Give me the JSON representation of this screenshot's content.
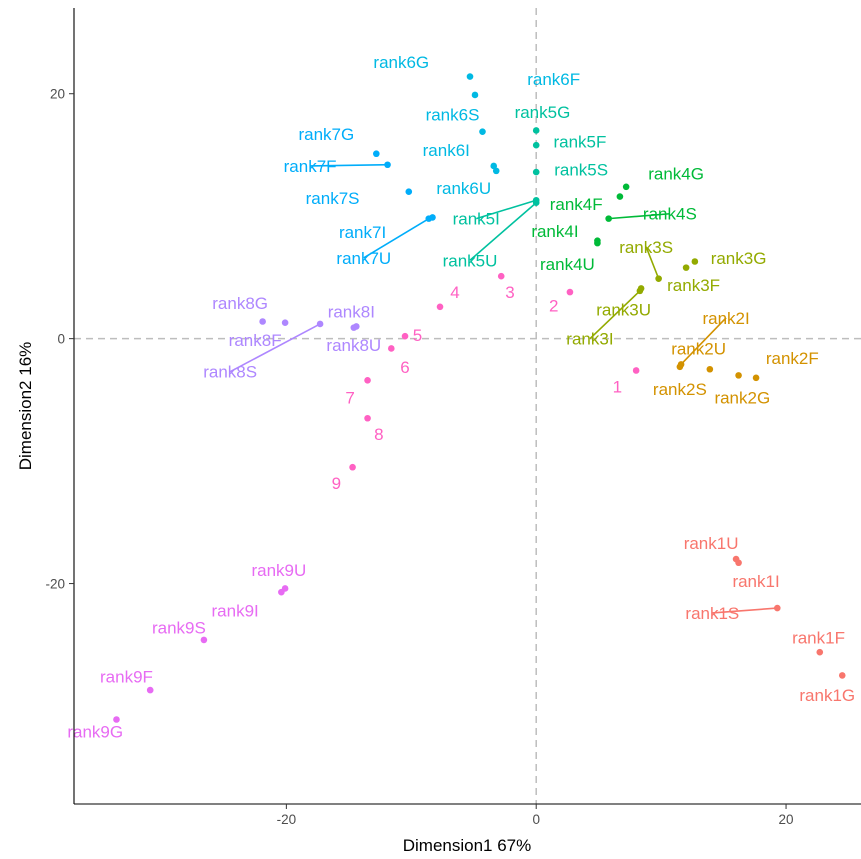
{
  "chart_data": {
    "type": "scatter",
    "xlabel": "Dimension1 67%",
    "ylabel": "Dimension2 16%",
    "xlim": [
      -37,
      26
    ],
    "ylim": [
      -38,
      27
    ],
    "x_ticks": [
      {
        "value": -20,
        "label": "-20"
      },
      {
        "value": 0,
        "label": "0"
      },
      {
        "value": 20,
        "label": "20"
      }
    ],
    "y_ticks": [
      {
        "value": -20,
        "label": "-20"
      },
      {
        "value": 0,
        "label": "0"
      },
      {
        "value": 20,
        "label": "20"
      }
    ],
    "reference_lines": {
      "x": 0,
      "y": 0,
      "style": "dashed",
      "color": "#bdbdbd"
    },
    "grid": false,
    "legend": "none",
    "groups": [
      {
        "name": "rank1",
        "color": "#F8766D",
        "points": [
          {
            "label": "rank1U",
            "x": 16.0,
            "y": -18.0,
            "lx": 14.0,
            "ly": -16.7
          },
          {
            "label": "rank1I",
            "x": 16.2,
            "y": -18.3,
            "lx": 17.6,
            "ly": -19.8
          },
          {
            "label": "rank1S",
            "x": 19.3,
            "y": -22.0,
            "lx": 14.1,
            "ly": -22.4,
            "line": true
          },
          {
            "label": "rank1F",
            "x": 22.7,
            "y": -25.6,
            "lx": 22.6,
            "ly": -24.4
          },
          {
            "label": "rank1G",
            "x": 24.5,
            "y": -27.5,
            "lx": 23.3,
            "ly": -29.1
          }
        ]
      },
      {
        "name": "rank2",
        "color": "#D39200",
        "points": [
          {
            "label": "rank2I",
            "x": 11.6,
            "y": -2.1,
            "lx": 15.2,
            "ly": 1.7,
            "line": true
          },
          {
            "label": "rank2U",
            "x": 11.5,
            "y": -2.3,
            "lx": 13.0,
            "ly": -0.8
          },
          {
            "label": "rank2S",
            "x": 13.9,
            "y": -2.5,
            "lx": 11.5,
            "ly": -4.1
          },
          {
            "label": "rank2F",
            "x": 16.2,
            "y": -3.0,
            "lx": 20.5,
            "ly": -1.6
          },
          {
            "label": "rank2G",
            "x": 17.6,
            "y": -3.2,
            "lx": 16.5,
            "ly": -4.8
          }
        ]
      },
      {
        "name": "rank3",
        "color": "#93AA00",
        "points": [
          {
            "label": "rank3S",
            "x": 9.8,
            "y": 4.9,
            "lx": 8.8,
            "ly": 7.5,
            "line": true
          },
          {
            "label": "rank3G",
            "x": 12.7,
            "y": 6.3,
            "lx": 16.2,
            "ly": 6.6
          },
          {
            "label": "rank3F",
            "x": 12.0,
            "y": 5.8,
            "lx": 12.6,
            "ly": 4.4
          },
          {
            "label": "rank3U",
            "x": 8.4,
            "y": 4.1,
            "lx": 7.0,
            "ly": 2.4
          },
          {
            "label": "rank3I",
            "x": 8.3,
            "y": 3.9,
            "lx": 4.3,
            "ly": 0.0,
            "line": true
          }
        ]
      },
      {
        "name": "rank4",
        "color": "#00BA38",
        "points": [
          {
            "label": "rank4G",
            "x": 7.2,
            "y": 12.4,
            "lx": 11.2,
            "ly": 13.5
          },
          {
            "label": "rank4F",
            "x": 6.7,
            "y": 11.6,
            "lx": 3.2,
            "ly": 11.0
          },
          {
            "label": "rank4S",
            "x": 5.8,
            "y": 9.8,
            "lx": 10.7,
            "ly": 10.2,
            "line": true
          },
          {
            "label": "rank4I",
            "x": 4.9,
            "y": 8.0,
            "lx": 1.5,
            "ly": 8.8
          },
          {
            "label": "rank4U",
            "x": 4.9,
            "y": 7.8,
            "lx": 2.5,
            "ly": 6.1
          }
        ]
      },
      {
        "name": "rank5",
        "color": "#00C19F",
        "points": [
          {
            "label": "rank5G",
            "x": 0.0,
            "y": 17.0,
            "lx": 0.5,
            "ly": 18.5
          },
          {
            "label": "rank5F",
            "x": 0.0,
            "y": 15.8,
            "lx": 3.5,
            "ly": 16.1
          },
          {
            "label": "rank5S",
            "x": 0.0,
            "y": 13.6,
            "lx": 3.6,
            "ly": 13.8
          },
          {
            "label": "rank5I",
            "x": 0.0,
            "y": 11.3,
            "lx": -4.8,
            "ly": 9.8,
            "line": true
          },
          {
            "label": "rank5U",
            "x": 0.0,
            "y": 11.1,
            "lx": -5.3,
            "ly": 6.4,
            "line": true
          }
        ]
      },
      {
        "name": "rank6",
        "color": "#00B9E3",
        "points": [
          {
            "label": "rank6G",
            "x": -5.3,
            "y": 21.4,
            "lx": -10.8,
            "ly": 22.6
          },
          {
            "label": "rank6F",
            "x": -4.9,
            "y": 19.9,
            "lx": 1.4,
            "ly": 21.2
          },
          {
            "label": "rank6S",
            "x": -4.3,
            "y": 16.9,
            "lx": -6.7,
            "ly": 18.3
          },
          {
            "label": "rank6I",
            "x": -3.4,
            "y": 14.1,
            "lx": -7.2,
            "ly": 15.4
          },
          {
            "label": "rank6U",
            "x": -3.2,
            "y": 13.7,
            "lx": -5.8,
            "ly": 12.3
          }
        ]
      },
      {
        "name": "rank7",
        "color": "#00ADFA",
        "points": [
          {
            "label": "rank7G",
            "x": -12.8,
            "y": 15.1,
            "lx": -16.8,
            "ly": 16.7
          },
          {
            "label": "rank7F",
            "x": -11.9,
            "y": 14.2,
            "lx": -18.1,
            "ly": 14.1,
            "line": true
          },
          {
            "label": "rank7S",
            "x": -10.2,
            "y": 12.0,
            "lx": -16.3,
            "ly": 11.5
          },
          {
            "label": "rank7I",
            "x": -8.3,
            "y": 9.9,
            "lx": -13.9,
            "ly": 8.7
          },
          {
            "label": "rank7U",
            "x": -8.6,
            "y": 9.8,
            "lx": -13.8,
            "ly": 6.6,
            "line": true
          }
        ]
      },
      {
        "name": "rank8",
        "color": "#AE87FF",
        "points": [
          {
            "label": "rank8G",
            "x": -21.9,
            "y": 1.4,
            "lx": -23.7,
            "ly": 2.9
          },
          {
            "label": "rank8F",
            "x": -20.1,
            "y": 1.3,
            "lx": -22.5,
            "ly": -0.1
          },
          {
            "label": "rank8S",
            "x": -17.3,
            "y": 1.2,
            "lx": -24.5,
            "ly": -2.7,
            "line": true
          },
          {
            "label": "rank8I",
            "x": -14.4,
            "y": 1.0,
            "lx": -14.8,
            "ly": 2.2
          },
          {
            "label": "rank8U",
            "x": -14.6,
            "y": 0.9,
            "lx": -14.6,
            "ly": -0.5
          }
        ]
      },
      {
        "name": "rank9",
        "color": "#E76BF3",
        "points": [
          {
            "label": "rank9U",
            "x": -20.1,
            "y": -20.4,
            "lx": -20.6,
            "ly": -18.9
          },
          {
            "label": "rank9I",
            "x": -20.4,
            "y": -20.7,
            "lx": -24.1,
            "ly": -22.2
          },
          {
            "label": "rank9S",
            "x": -26.6,
            "y": -24.6,
            "lx": -28.6,
            "ly": -23.6
          },
          {
            "label": "rank9F",
            "x": -30.9,
            "y": -28.7,
            "lx": -32.8,
            "ly": -27.6
          },
          {
            "label": "rank9G",
            "x": -33.6,
            "y": -31.1,
            "lx": -35.3,
            "ly": -32.1
          }
        ]
      },
      {
        "name": "ranks",
        "color": "#FF61C3",
        "points": [
          {
            "label": "1",
            "x": 8.0,
            "y": -2.6,
            "lx": 6.5,
            "ly": -3.9
          },
          {
            "label": "2",
            "x": 2.7,
            "y": 3.8,
            "lx": 1.4,
            "ly": 2.7
          },
          {
            "label": "3",
            "x": -2.8,
            "y": 5.1,
            "lx": -2.1,
            "ly": 3.8
          },
          {
            "label": "4",
            "x": -7.7,
            "y": 2.6,
            "lx": -6.5,
            "ly": 3.8
          },
          {
            "label": "5",
            "x": -10.5,
            "y": 0.2,
            "lx": -9.5,
            "ly": 0.3
          },
          {
            "label": "6",
            "x": -11.6,
            "y": -0.8,
            "lx": -10.5,
            "ly": -2.3
          },
          {
            "label": "7",
            "x": -13.5,
            "y": -3.4,
            "lx": -14.9,
            "ly": -4.8
          },
          {
            "label": "8",
            "x": -13.5,
            "y": -6.5,
            "lx": -12.6,
            "ly": -7.8
          },
          {
            "label": "9",
            "x": -14.7,
            "y": -10.5,
            "lx": -16.0,
            "ly": -11.8
          }
        ]
      }
    ]
  }
}
